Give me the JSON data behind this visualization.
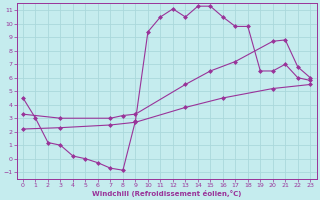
{
  "xlabel": "Windchill (Refroidissement éolien,°C)",
  "xlim": [
    -0.5,
    23.5
  ],
  "ylim": [
    -1.5,
    11.5
  ],
  "xticks": [
    0,
    1,
    2,
    3,
    4,
    5,
    6,
    7,
    8,
    9,
    10,
    11,
    12,
    13,
    14,
    15,
    16,
    17,
    18,
    19,
    20,
    21,
    22,
    23
  ],
  "yticks": [
    -1,
    0,
    1,
    2,
    3,
    4,
    5,
    6,
    7,
    8,
    9,
    10,
    11
  ],
  "bg_color": "#c5ecee",
  "grid_color": "#aad8dc",
  "line_color": "#993399",
  "line1_x": [
    0,
    1,
    2,
    3,
    4,
    5,
    6,
    7,
    8,
    9,
    10,
    11,
    12,
    13,
    14,
    15,
    16,
    17,
    18,
    19,
    20,
    21,
    22,
    23
  ],
  "line1_y": [
    4.5,
    3.0,
    1.2,
    1.0,
    0.2,
    0.0,
    -0.3,
    -0.7,
    -0.85,
    2.8,
    9.4,
    10.5,
    11.1,
    10.5,
    11.3,
    11.3,
    10.5,
    9.8,
    9.8,
    6.5,
    6.5,
    7.0,
    6.0,
    5.8
  ],
  "line2_x": [
    0,
    3,
    7,
    8,
    9,
    13,
    15,
    17,
    20,
    21,
    22,
    23
  ],
  "line2_y": [
    3.3,
    3.0,
    3.0,
    3.2,
    3.3,
    5.5,
    6.5,
    7.2,
    8.7,
    8.8,
    6.8,
    6.0
  ],
  "line3_x": [
    0,
    3,
    7,
    9,
    13,
    16,
    20,
    23
  ],
  "line3_y": [
    2.2,
    2.3,
    2.5,
    2.7,
    3.8,
    4.5,
    5.2,
    5.5
  ],
  "marker": "D",
  "markersize": 2.5,
  "linewidth": 0.8
}
